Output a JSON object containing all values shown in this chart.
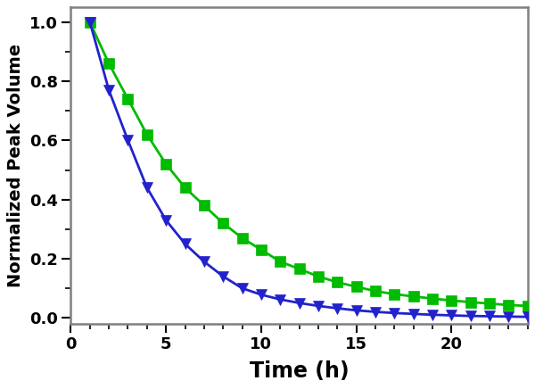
{
  "xlabel": "Time (h)",
  "ylabel": "Normalized Peak Volume",
  "xlim": [
    0,
    24
  ],
  "ylim": [
    -0.02,
    1.05
  ],
  "xticks": [
    0,
    5,
    10,
    15,
    20
  ],
  "yticks": [
    0.0,
    0.2,
    0.4,
    0.6,
    0.8,
    1.0
  ],
  "green_x": [
    1,
    2,
    3,
    4,
    5,
    6,
    7,
    8,
    9,
    10,
    11,
    12,
    13,
    14,
    15,
    16,
    17,
    18,
    19,
    20,
    21,
    22,
    23,
    24
  ],
  "green_y": [
    1.0,
    0.86,
    0.74,
    0.62,
    0.52,
    0.44,
    0.38,
    0.32,
    0.27,
    0.23,
    0.19,
    0.165,
    0.14,
    0.12,
    0.105,
    0.09,
    0.08,
    0.072,
    0.065,
    0.058,
    0.053,
    0.048,
    0.043,
    0.04
  ],
  "blue_x": [
    1,
    2,
    3,
    4,
    5,
    6,
    7,
    8,
    9,
    10,
    11,
    12,
    13,
    14,
    15,
    16,
    17,
    18,
    19,
    20,
    21,
    22,
    23,
    24
  ],
  "blue_y": [
    1.0,
    0.77,
    0.6,
    0.44,
    0.33,
    0.25,
    0.19,
    0.14,
    0.1,
    0.078,
    0.062,
    0.05,
    0.04,
    0.032,
    0.025,
    0.02,
    0.016,
    0.013,
    0.01,
    0.008,
    0.006,
    0.005,
    0.004,
    0.003
  ],
  "green_color": "#00bb00",
  "blue_color": "#2222cc",
  "line_width": 2.0,
  "marker_size": 8,
  "background_color": "#ffffff",
  "xlabel_fontsize": 17,
  "ylabel_fontsize": 14,
  "tick_fontsize": 13,
  "axis_linewidth": 1.8,
  "spine_color": "#808080"
}
